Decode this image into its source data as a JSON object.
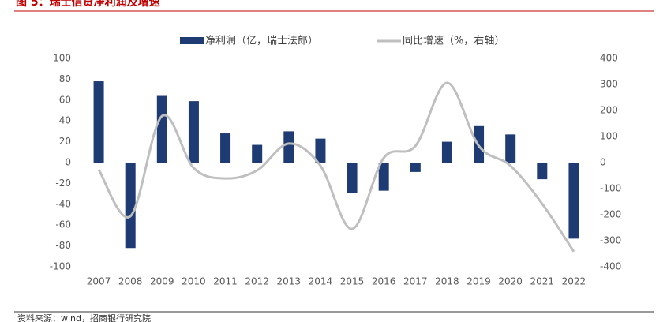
{
  "chart_data": {
    "type": "bar-line",
    "title": "图 5：瑞士信贷净利润及增速",
    "source": "资料来源：wind，招商银行研究院",
    "categories": [
      "2007",
      "2008",
      "2009",
      "2010",
      "2011",
      "2012",
      "2013",
      "2014",
      "2015",
      "2016",
      "2017",
      "2018",
      "2019",
      "2020",
      "2021",
      "2022"
    ],
    "series": [
      {
        "name": "净利润（亿，瑞士法郎）",
        "type": "bar",
        "color": "#1f3b73",
        "values": [
          78,
          -82,
          64,
          59,
          28,
          17,
          30,
          23,
          -29,
          -27,
          -9,
          20,
          35,
          27,
          -16,
          -73
        ]
      },
      {
        "name": "同比增速（%，右轴）",
        "type": "line",
        "axis": "y2",
        "color": "#bfbfbf",
        "smooth": true,
        "values": [
          -27,
          -206,
          179,
          -21,
          -61,
          -30,
          73,
          -12,
          -255,
          18,
          64,
          306,
          64,
          -12,
          -158,
          -342
        ]
      }
    ],
    "ylim": [
      -100,
      100
    ],
    "yticks": [
      -100,
      -80,
      -60,
      -40,
      -20,
      0,
      20,
      40,
      60,
      80,
      100
    ],
    "y2lim": [
      -400,
      400
    ],
    "y2ticks": [
      -400,
      -300,
      -200,
      -100,
      0,
      100,
      200,
      300,
      400
    ],
    "legend": "top"
  }
}
